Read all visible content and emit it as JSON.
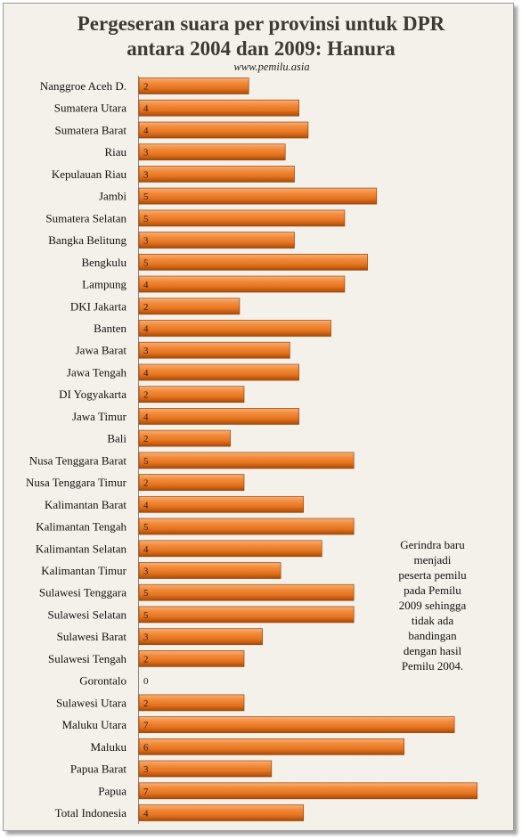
{
  "chart_data": {
    "type": "bar",
    "orientation": "horizontal",
    "title": "Pergeseran suara per provinsi untuk DPR\nantara 2004 dan 2009: Hanura",
    "subtitle": "www.pemilu.asia",
    "categories": [
      "Nanggroe Aceh D.",
      "Sumatera Utara",
      "Sumatera Barat",
      "Riau",
      "Kepulauan Riau",
      "Jambi",
      "Sumatera Selatan",
      "Bangka Belitung",
      "Bengkulu",
      "Lampung",
      "DKI Jakarta",
      "Banten",
      "Jawa Barat",
      "Jawa Tengah",
      "DI Yogyakarta",
      "Jawa Timur",
      "Bali",
      "Nusa Tenggara Barat",
      "Nusa Tenggara Timur",
      "Kalimantan Barat",
      "Kalimantan Tengah",
      "Kalimantan Selatan",
      "Kalimantan Timur",
      "Sulawesi Tenggara",
      "Sulawesi Selatan",
      "Sulawesi Barat",
      "Sulawesi Tengah",
      "Gorontalo",
      "Sulawesi Utara",
      "Maluku Utara",
      "Maluku",
      "Papua Barat",
      "Papua",
      "Total Indonesia"
    ],
    "values": [
      2.4,
      3.5,
      3.7,
      3.2,
      3.4,
      5.2,
      4.5,
      3.4,
      5.0,
      4.5,
      2.2,
      4.2,
      3.3,
      3.5,
      2.3,
      3.5,
      2.0,
      4.7,
      2.3,
      3.6,
      4.7,
      4.0,
      3.1,
      4.7,
      4.7,
      2.7,
      2.3,
      0,
      2.3,
      6.9,
      5.8,
      2.9,
      7.4,
      3.6
    ],
    "data_labels": [
      2,
      4,
      4,
      3,
      3,
      5,
      5,
      3,
      5,
      4,
      2,
      4,
      3,
      4,
      2,
      4,
      2,
      5,
      2,
      4,
      5,
      4,
      3,
      5,
      5,
      3,
      2,
      0,
      2,
      7,
      6,
      3,
      7,
      4
    ],
    "xlim": [
      0,
      7.6
    ],
    "x_axis_shown": false,
    "grid": false,
    "legend": "none",
    "annotation": "Gerindra baru\nmenjadi\npeserta pemilu\npada Pemilu\n2009 sehingga\ntidak ada\nbandingan\ndengan hasil\nPemilu 2004."
  },
  "colors": {
    "bar": "#f28c3c",
    "background": "#f4f1ea",
    "title": "#3c3a32"
  }
}
